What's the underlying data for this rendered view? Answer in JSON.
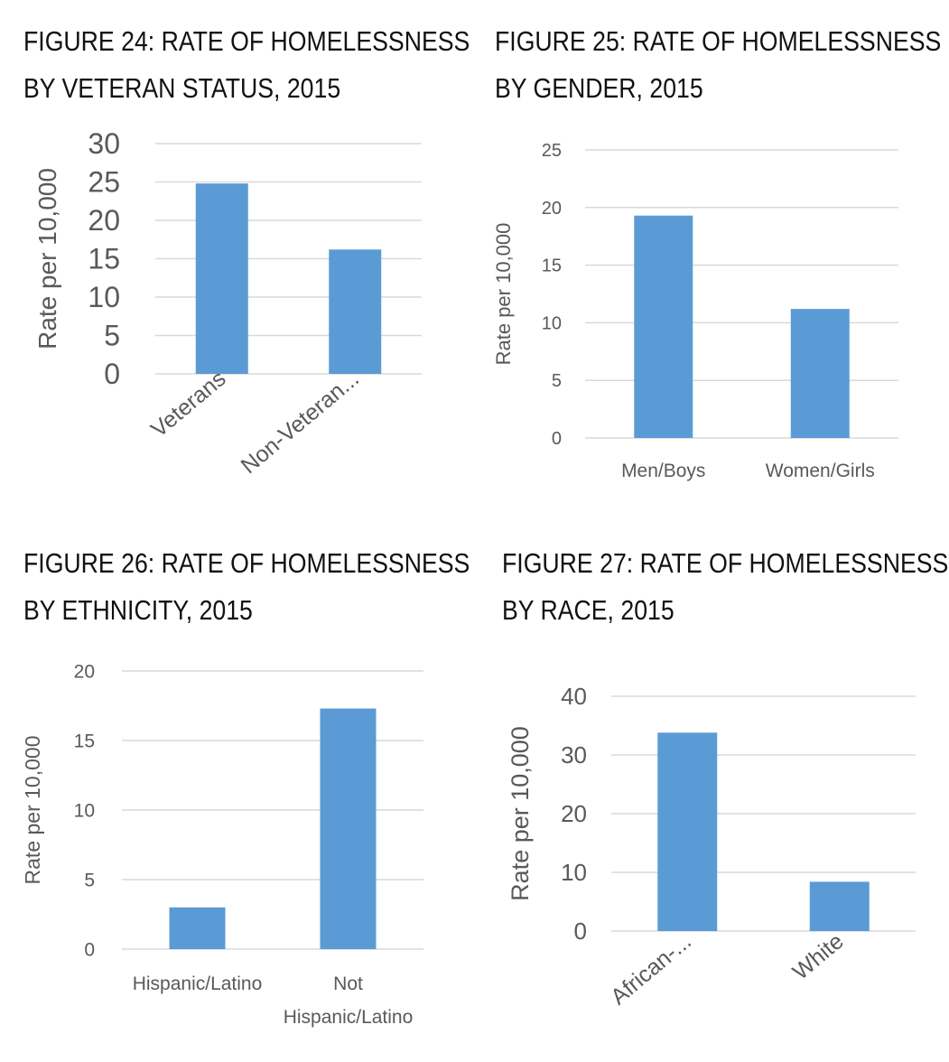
{
  "figures": [
    {
      "title_line1": "FIGURE 24: RATE OF HOMELESSNESS",
      "title_line2": "BY VETERAN STATUS, 2015",
      "chart_data": {
        "type": "bar",
        "title": "FIGURE 24: RATE OF HOMELESSNESS BY VETERAN STATUS, 2015",
        "categories": [
          "Veterans",
          "Non-Veteran..."
        ],
        "values": [
          24.8,
          16.2
        ],
        "ylabel": "Rate per 10,000",
        "xlabel": "",
        "ylim": [
          0,
          30
        ],
        "yticks": [
          0,
          5,
          10,
          15,
          20,
          25,
          30
        ],
        "grid": true,
        "legend": "none",
        "bar_color": "#5B9BD5"
      }
    },
    {
      "title_line1": "FIGURE 25: RATE OF HOMELESSNESS",
      "title_line2": "BY GENDER, 2015",
      "chart_data": {
        "type": "bar",
        "title": "FIGURE 25: RATE OF HOMELESSNESS BY GENDER, 2015",
        "categories": [
          "Men/Boys",
          "Women/Girls"
        ],
        "values": [
          19.3,
          11.2
        ],
        "ylabel": "Rate per 10,000",
        "xlabel": "",
        "ylim": [
          0,
          25
        ],
        "yticks": [
          0,
          5,
          10,
          15,
          20,
          25
        ],
        "grid": true,
        "legend": "none",
        "bar_color": "#5B9BD5"
      }
    },
    {
      "title_line1": "FIGURE 26: RATE OF HOMELESSNESS",
      "title_line2": "BY ETHNICITY, 2015",
      "chart_data": {
        "type": "bar",
        "title": "FIGURE 26: RATE OF HOMELESSNESS BY ETHNICITY, 2015",
        "categories": [
          "Hispanic/Latino",
          "Not Hispanic/Latino"
        ],
        "category_lines": [
          [
            "Hispanic/Latino"
          ],
          [
            "Not",
            "Hispanic/Latino"
          ]
        ],
        "values": [
          3.0,
          17.3
        ],
        "ylabel": "Rate per 10,000",
        "xlabel": "",
        "ylim": [
          0,
          20
        ],
        "yticks": [
          0,
          5,
          10,
          15,
          20
        ],
        "grid": true,
        "legend": "none",
        "bar_color": "#5B9BD5"
      }
    },
    {
      "title_line1": "FIGURE 27: RATE OF HOMELESSNESS",
      "title_line2": "BY RACE, 2015",
      "chart_data": {
        "type": "bar",
        "title": "FIGURE 27: RATE OF HOMELESSNESS BY RACE, 2015",
        "categories": [
          "African-...",
          "White"
        ],
        "values": [
          33.8,
          8.4
        ],
        "ylabel": "Rate per 10,000",
        "xlabel": "",
        "ylim": [
          0,
          40
        ],
        "yticks": [
          0,
          10,
          20,
          30,
          40
        ],
        "grid": true,
        "legend": "none",
        "bar_color": "#5B9BD5"
      }
    }
  ]
}
